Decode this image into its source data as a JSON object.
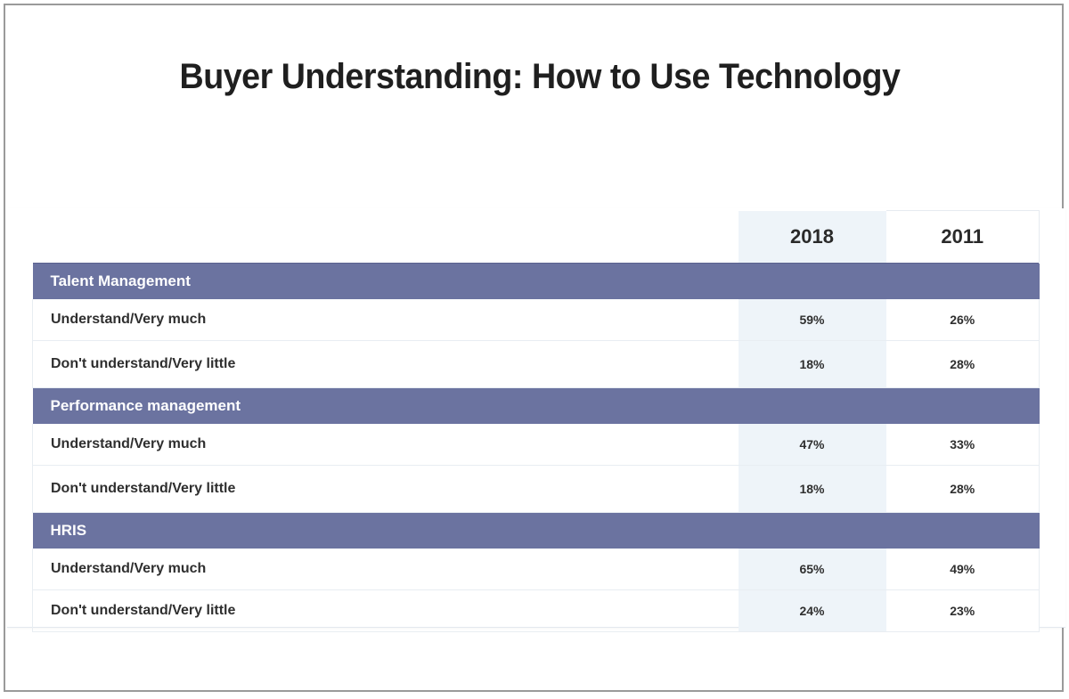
{
  "title": "Buyer Understanding: How to Use Technology",
  "chart_data": {
    "type": "table",
    "title": "Buyer Understanding: How to Use Technology",
    "columns": [
      "2018",
      "2011"
    ],
    "sections": [
      {
        "name": "Talent Management",
        "rows": [
          {
            "label": "Understand/Very much",
            "values": [
              "59%",
              "26%"
            ]
          },
          {
            "label": "Don't understand/Very little",
            "values": [
              "18%",
              "28%"
            ]
          }
        ]
      },
      {
        "name": "Performance management",
        "rows": [
          {
            "label": "Understand/Very much",
            "values": [
              "47%",
              "33%"
            ]
          },
          {
            "label": "Don't understand/Very little",
            "values": [
              "18%",
              "28%"
            ]
          }
        ]
      },
      {
        "name": "HRIS",
        "rows": [
          {
            "label": "Understand/Very much",
            "values": [
              "65%",
              "49%"
            ]
          },
          {
            "label": "Don't understand/Very little",
            "values": [
              "24%",
              "23%"
            ]
          }
        ]
      }
    ]
  },
  "colors": {
    "section_header": "#6b73a0",
    "highlight_column": "#eef4f9",
    "text": "#2f2f2f"
  }
}
